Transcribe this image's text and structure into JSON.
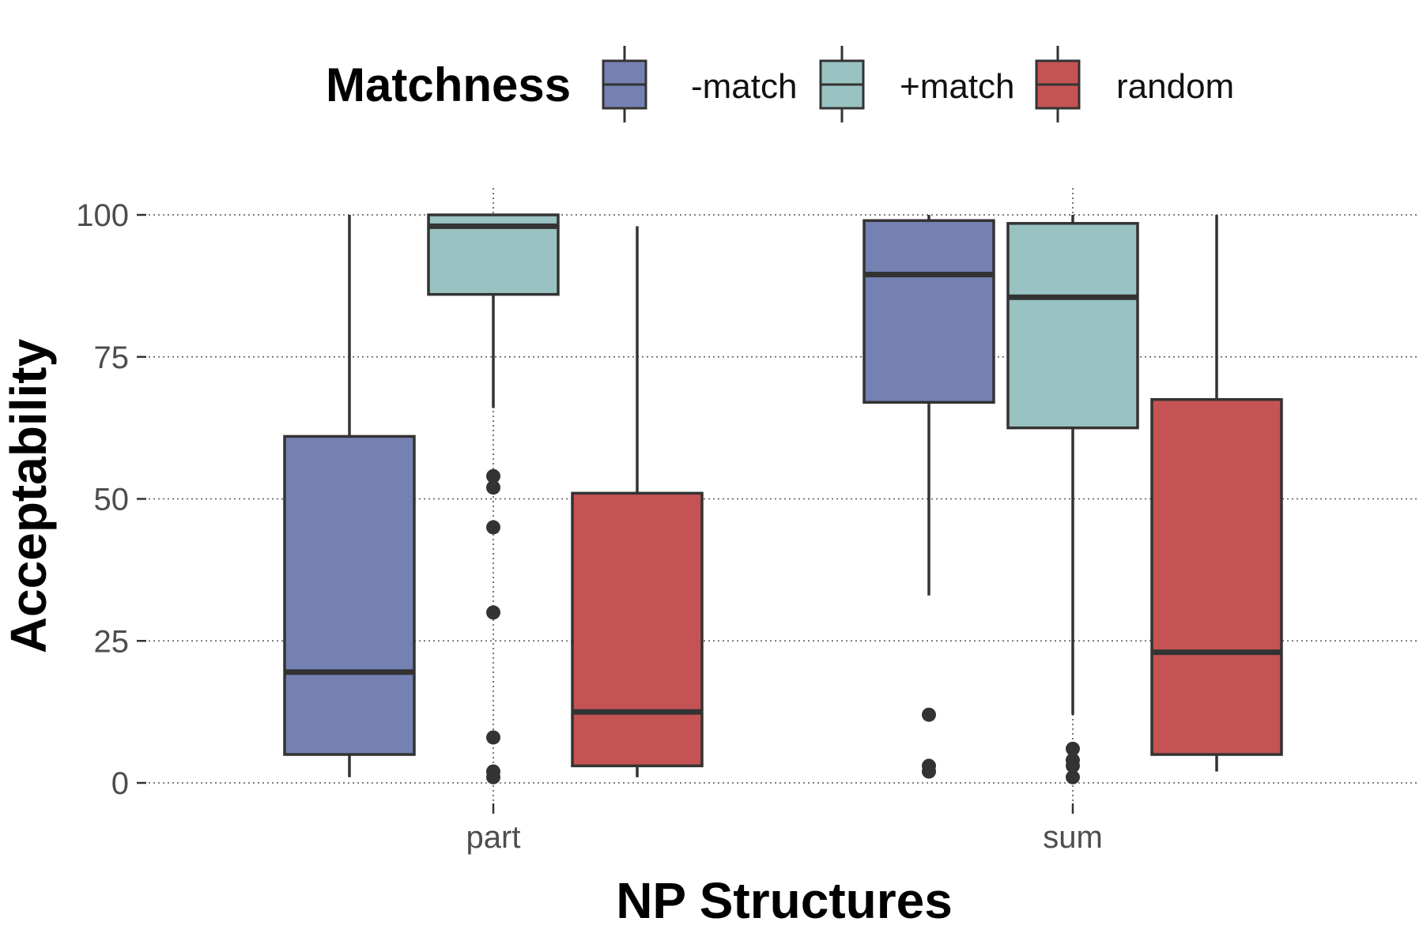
{
  "chart_data": {
    "type": "boxplot",
    "title": "",
    "xlabel": "NP Structures",
    "ylabel": "Acceptability",
    "categories": [
      "part",
      "sum"
    ],
    "ylim": [
      -4,
      104
    ],
    "yticks": [
      0,
      25,
      50,
      75,
      100
    ],
    "ytick_labels": [
      "0",
      "25",
      "50",
      "75",
      "100"
    ],
    "grid": "dotted major gridlines",
    "legend": {
      "title": "Matchness",
      "position": "top"
    },
    "series": [
      {
        "name": "-match",
        "color": "#7581b3",
        "boxes": [
          {
            "category": "part",
            "min": 1,
            "q1": 5,
            "median": 19.5,
            "q3": 61,
            "max": 100,
            "outliers": []
          },
          {
            "category": "sum",
            "min": 33,
            "q1": 67,
            "median": 89.5,
            "q3": 99,
            "max": 100,
            "outliers": [
              12,
              3,
              2
            ]
          }
        ]
      },
      {
        "name": "+match",
        "color": "#99c3c2",
        "boxes": [
          {
            "category": "part",
            "min": 66,
            "q1": 86,
            "median": 98,
            "q3": 100,
            "max": 100,
            "outliers": [
              54,
              52,
              45,
              30,
              8,
              2,
              1
            ]
          },
          {
            "category": "sum",
            "min": 12,
            "q1": 62.5,
            "median": 85.5,
            "q3": 98.5,
            "max": 100,
            "outliers": [
              6,
              4,
              3,
              1
            ]
          }
        ]
      },
      {
        "name": "random",
        "color": "#c55354",
        "boxes": [
          {
            "category": "part",
            "min": 1,
            "q1": 3,
            "median": 12.5,
            "q3": 51,
            "max": 98,
            "outliers": []
          },
          {
            "category": "sum",
            "min": 2,
            "q1": 5,
            "median": 23,
            "q3": 67.5,
            "max": 100,
            "outliers": []
          }
        ]
      }
    ]
  }
}
